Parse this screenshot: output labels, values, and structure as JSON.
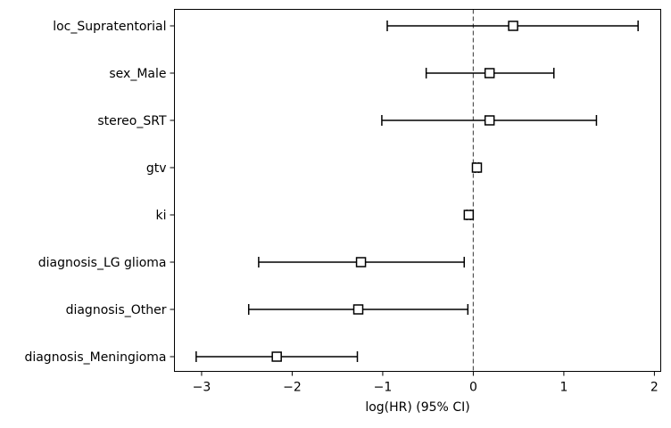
{
  "chart_data": {
    "type": "scatter",
    "subtype": "forest-plot",
    "title": "",
    "xlabel": "log(HR) (95% CI)",
    "ylabel": "",
    "xlim": [
      -3.3,
      2.07
    ],
    "xticks": [
      -3,
      -2,
      -1,
      0,
      1,
      2
    ],
    "xtick_labels": [
      "−3",
      "−2",
      "−1",
      "0",
      "1",
      "2"
    ],
    "reference_line": 0,
    "grid": false,
    "legend": "none",
    "marker": "square-open",
    "colors": {
      "line": "#000000",
      "marker_fill": "#ffffff",
      "reference": "#555555"
    },
    "rows": [
      {
        "label": "loc_Supratentorial",
        "estimate": 0.44,
        "lower": -0.95,
        "upper": 1.82
      },
      {
        "label": "sex_Male",
        "estimate": 0.18,
        "lower": -0.52,
        "upper": 0.89
      },
      {
        "label": "stereo_SRT",
        "estimate": 0.18,
        "lower": -1.01,
        "upper": 1.36
      },
      {
        "label": "gtv",
        "estimate": 0.04,
        "lower": 0.02,
        "upper": 0.06
      },
      {
        "label": "ki",
        "estimate": -0.05,
        "lower": -0.07,
        "upper": -0.03
      },
      {
        "label": "diagnosis_LG glioma",
        "estimate": -1.24,
        "lower": -2.37,
        "upper": -0.1
      },
      {
        "label": "diagnosis_Other",
        "estimate": -1.27,
        "lower": -2.48,
        "upper": -0.06
      },
      {
        "label": "diagnosis_Meningioma",
        "estimate": -2.17,
        "lower": -3.06,
        "upper": -1.28
      }
    ]
  }
}
